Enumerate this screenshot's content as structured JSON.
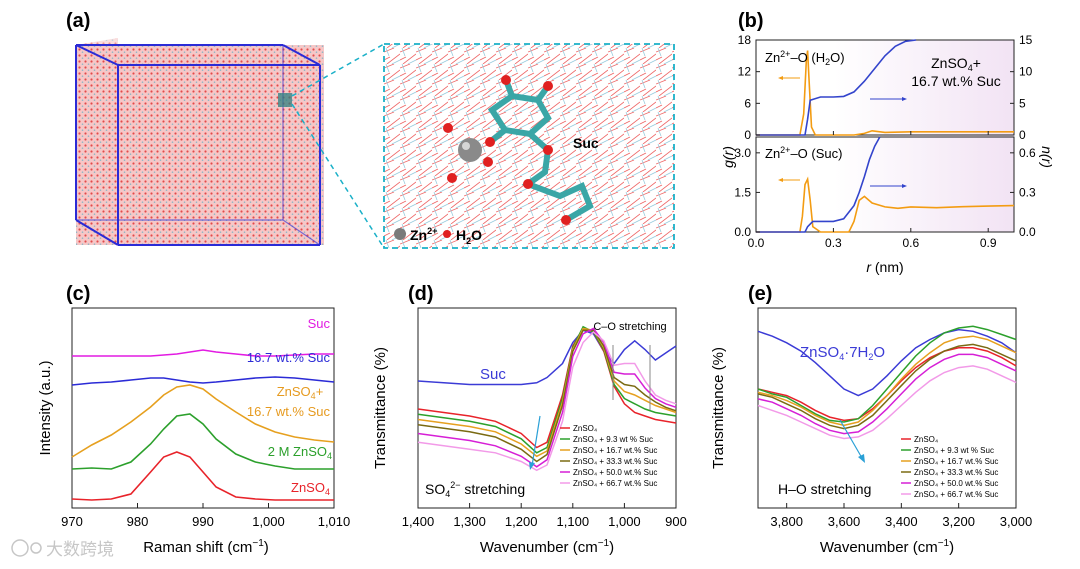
{
  "panels": {
    "a": {
      "label": "(a)",
      "zn_label": "Zn",
      "zn_sup": "2+",
      "water_label": "H",
      "water_sub": "2",
      "water_tail": "O",
      "suc_label": "Suc"
    },
    "b": {
      "label": "(b)",
      "top_label_pre": "Zn",
      "top_label_sup": "2+",
      "top_label_post": "–O (H",
      "top_label_sub": "2",
      "top_label_end": "O)",
      "bottom_label_pre": "Zn",
      "bottom_label_sup": "2+",
      "bottom_label_post": "–O (Suc)",
      "system_line1_pre": "ZnSO",
      "system_line1_sub": "4",
      "system_line1_post": "+",
      "system_line2": "16.7 wt.% Suc",
      "ylabel_left": "g(r)",
      "ylabel_right": "n(r)",
      "xlabel_pre": "r",
      "xlabel_post": " (nm)",
      "x_ticks": [
        "0.0",
        "0.3",
        "0.6",
        "0.9"
      ],
      "top_left_ticks": [
        "0",
        "6",
        "12",
        "18"
      ],
      "top_right_ticks": [
        "0",
        "5",
        "10",
        "15"
      ],
      "bottom_left_ticks": [
        "0.0",
        "1.5",
        "3.0"
      ],
      "bottom_right_ticks": [
        "0.0",
        "0.3",
        "0.6"
      ],
      "colors": {
        "gr": "#f39c12",
        "nr": "#3344cc",
        "shade": "#f4eaf7"
      }
    },
    "c": {
      "label": "(c)",
      "ylabel": "Intensity (a.u.)",
      "xlabel_pre": "Raman shift (cm",
      "xlabel_sup": "−1",
      "xlabel_post": ")",
      "x_ticks": [
        "970",
        "980",
        "990",
        "1,000",
        "1,010"
      ],
      "curve_labels": {
        "suc": "Suc",
        "suc167": "16.7 wt.% Suc",
        "mix_line1_pre": "ZnSO",
        "mix_line1_sub": "4",
        "mix_line1_post": "+",
        "mix_line2": "16.7 wt.% Suc",
        "zn2m_pre": "2 M ZnSO",
        "zn2m_sub": "4",
        "znso4_pre": "ZnSO",
        "znso4_sub": "4"
      }
    },
    "d": {
      "label": "(d)",
      "ylabel": "Transmittance (%)",
      "xlabel_pre": "Wavenumber (cm",
      "xlabel_sup": "−1",
      "xlabel_post": ")",
      "x_ticks": [
        "1,400",
        "1,300",
        "1,200",
        "1,100",
        "1,000",
        "900"
      ],
      "suc_label": "Suc",
      "co_label": "C–O stretching",
      "so4_pre": "SO",
      "so4_sub": "4",
      "so4_sup": "2−",
      "so4_post": " stretching",
      "legend": [
        "ZnSO₄",
        "ZnSO₄ + 9.3 wt % Suc",
        "ZnSO₄ + 16.7 wt.% Suc",
        "ZnSO₄ + 33.3 wt.% Suc",
        "ZnSO₄ + 50.0 wt.% Suc",
        "ZnSO₄ + 66.7 wt.% Suc"
      ]
    },
    "e": {
      "label": "(e)",
      "ylabel": "Transmittance (%)",
      "xlabel_pre": "Wavenumber (cm",
      "xlabel_sup": "−1",
      "xlabel_post": ")",
      "x_ticks": [
        "3,800",
        "3,600",
        "3,400",
        "3,200",
        "3,000"
      ],
      "hydrate_pre": "ZnSO",
      "hydrate_sub": "4",
      "hydrate_post": "·7H",
      "hydrate_sub2": "2",
      "hydrate_end": "O",
      "ho_label": "H–O stretching",
      "legend": [
        "ZnSO₄",
        "ZnSO₄ + 9.3 wt % Suc",
        "ZnSO₄ + 16.7 wt.% Suc",
        "ZnSO₄ + 33.3 wt.% Suc",
        "ZnSO₄ + 50.0 wt.% Suc",
        "ZnSO₄ + 66.7 wt.% Suc"
      ]
    }
  },
  "watermark": "大数跨境",
  "series_colors": [
    "#e8232a",
    "#2ca02c",
    "#e6a01f",
    "#7a6a12",
    "#d61fd6",
    "#f29ae8"
  ],
  "suc_color": "#3b3bd6",
  "chart_data": [
    {
      "panel": "b",
      "type": "line",
      "title": "ZnSO4+ 16.7 wt.% Suc",
      "xlabel": "r (nm)",
      "subplots": [
        {
          "name": "Zn2+–O (H2O)",
          "xlim": [
            0,
            1.0
          ],
          "ylim_left": [
            0,
            18
          ],
          "ylim_right": [
            0,
            15
          ],
          "series": [
            {
              "name": "g(r)",
              "axis": "left",
              "x": [
                0.0,
                0.17,
                0.185,
                0.195,
                0.2,
                0.205,
                0.215,
                0.23,
                0.3,
                0.38,
                0.42,
                0.45,
                0.5,
                0.6,
                0.8,
                1.0
              ],
              "y": [
                0,
                0,
                4,
                14,
                16,
                11,
                1.5,
                0,
                0,
                0,
                0.3,
                0.8,
                0.5,
                0.6,
                0.6,
                0.6
              ]
            },
            {
              "name": "n(r)",
              "axis": "right",
              "x": [
                0.0,
                0.19,
                0.2,
                0.21,
                0.25,
                0.3,
                0.34,
                0.38,
                0.42,
                0.46,
                0.5,
                0.54,
                0.58,
                0.62
              ],
              "y": [
                0,
                0,
                2.5,
                5.5,
                6,
                6,
                6.1,
                6.8,
                8.5,
                10.5,
                12.5,
                14,
                14.8,
                15
              ]
            }
          ]
        },
        {
          "name": "Zn2+–O (Suc)",
          "xlim": [
            0,
            1.0
          ],
          "ylim_left": [
            0,
            3.6
          ],
          "ylim_right": [
            0,
            0.72
          ],
          "series": [
            {
              "name": "g(r)",
              "axis": "left",
              "x": [
                0.0,
                0.17,
                0.18,
                0.19,
                0.2,
                0.21,
                0.22,
                0.25,
                0.3,
                0.36,
                0.38,
                0.4,
                0.42,
                0.45,
                0.5,
                0.55,
                0.6,
                0.7,
                0.8,
                0.9,
                1.0
              ],
              "y": [
                0,
                0,
                0.6,
                1.8,
                2.0,
                1.2,
                0.2,
                0,
                0,
                0,
                0.4,
                1.2,
                1.35,
                1.1,
                0.95,
                0.9,
                0.95,
                0.92,
                0.96,
                0.98,
                1.0
              ]
            },
            {
              "name": "n(r)",
              "axis": "right",
              "x": [
                0.0,
                0.19,
                0.2,
                0.22,
                0.25,
                0.3,
                0.34,
                0.38,
                0.4,
                0.42,
                0.44,
                0.46,
                0.48
              ],
              "y": [
                0,
                0,
                0.04,
                0.08,
                0.08,
                0.08,
                0.1,
                0.2,
                0.3,
                0.42,
                0.55,
                0.65,
                0.72
              ]
            }
          ]
        }
      ]
    },
    {
      "panel": "c",
      "type": "line",
      "xlabel": "Raman shift (cm−1)",
      "ylabel": "Intensity (a.u.)",
      "xlim": [
        970,
        1010
      ],
      "x": [
        970,
        973,
        976,
        979,
        982,
        984,
        986,
        988,
        990,
        992,
        995,
        998,
        1001,
        1004,
        1007,
        1010
      ],
      "series": [
        {
          "name": "ZnSO4",
          "values": [
            0.03,
            0.02,
            0.03,
            0.08,
            0.3,
            0.45,
            0.5,
            0.45,
            0.3,
            0.15,
            0.05,
            0.03,
            0.02,
            0.02,
            0.02,
            0.02
          ],
          "offset": 0
        },
        {
          "name": "2 M ZnSO4",
          "values": [
            0.05,
            0.06,
            0.05,
            0.12,
            0.3,
            0.45,
            0.58,
            0.6,
            0.5,
            0.35,
            0.2,
            0.12,
            0.08,
            0.05,
            0.05,
            0.05
          ],
          "offset": 0.28
        },
        {
          "name": "ZnSO4+ 16.7 wt.% Suc",
          "values": [
            0.0,
            0.12,
            0.22,
            0.35,
            0.5,
            0.62,
            0.7,
            0.72,
            0.68,
            0.58,
            0.45,
            0.33,
            0.25,
            0.2,
            0.17,
            0.15
          ],
          "offset": 0.45
        },
        {
          "name": "16.7 wt.% Suc",
          "values": [
            0.05,
            0.07,
            0.08,
            0.1,
            0.12,
            0.12,
            0.1,
            0.08,
            0.07,
            0.08,
            0.1,
            0.12,
            0.13,
            0.12,
            0.1,
            0.08
          ],
          "offset": 1.12
        },
        {
          "name": "Suc",
          "values": [
            0.08,
            0.08,
            0.08,
            0.08,
            0.08,
            0.09,
            0.1,
            0.12,
            0.14,
            0.12,
            0.1,
            0.08,
            0.08,
            0.09,
            0.1,
            0.1
          ],
          "offset": 1.38
        }
      ]
    },
    {
      "panel": "d",
      "type": "line",
      "xlabel": "Wavenumber (cm−1)",
      "ylabel": "Transmittance (%)",
      "xlim": [
        1400,
        900
      ],
      "x": [
        1400,
        1350,
        1300,
        1250,
        1200,
        1170,
        1150,
        1120,
        1100,
        1080,
        1060,
        1040,
        1020,
        1000,
        980,
        960,
        940,
        920,
        900
      ],
      "series": [
        {
          "name": "Suc",
          "values": [
            0.68,
            0.67,
            0.66,
            0.66,
            0.66,
            0.67,
            0.7,
            0.78,
            0.9,
            0.97,
            0.95,
            0.85,
            0.78,
            0.86,
            0.91,
            0.86,
            0.8,
            0.84,
            0.88
          ]
        },
        {
          "name": "ZnSO4",
          "values": [
            0.52,
            0.5,
            0.48,
            0.45,
            0.38,
            0.3,
            0.33,
            0.6,
            0.88,
            0.98,
            0.96,
            0.85,
            0.65,
            0.55,
            0.5,
            0.48,
            0.46,
            0.45,
            0.44
          ]
        },
        {
          "name": "ZnSO4 + 9.3 wt % Suc",
          "values": [
            0.49,
            0.47,
            0.45,
            0.42,
            0.35,
            0.27,
            0.3,
            0.58,
            0.87,
            0.99,
            0.96,
            0.86,
            0.66,
            0.58,
            0.55,
            0.52,
            0.5,
            0.49,
            0.48
          ]
        },
        {
          "name": "ZnSO4 + 16.7 wt.% Suc",
          "values": [
            0.46,
            0.44,
            0.42,
            0.39,
            0.32,
            0.25,
            0.28,
            0.56,
            0.86,
            0.98,
            0.97,
            0.87,
            0.68,
            0.62,
            0.6,
            0.57,
            0.54,
            0.52,
            0.5
          ]
        },
        {
          "name": "ZnSO4 + 33.3 wt.% Suc",
          "values": [
            0.43,
            0.41,
            0.39,
            0.36,
            0.29,
            0.22,
            0.26,
            0.54,
            0.85,
            0.97,
            0.97,
            0.88,
            0.7,
            0.66,
            0.65,
            0.6,
            0.56,
            0.53,
            0.51
          ]
        },
        {
          "name": "ZnSO4 + 50.0 wt.% Suc",
          "values": [
            0.38,
            0.36,
            0.34,
            0.31,
            0.25,
            0.19,
            0.23,
            0.5,
            0.82,
            0.95,
            0.98,
            0.9,
            0.73,
            0.72,
            0.72,
            0.64,
            0.58,
            0.55,
            0.53
          ]
        },
        {
          "name": "ZnSO4 + 66.7 wt.% Suc",
          "values": [
            0.33,
            0.31,
            0.29,
            0.27,
            0.22,
            0.17,
            0.2,
            0.45,
            0.76,
            0.9,
            0.96,
            0.91,
            0.77,
            0.78,
            0.78,
            0.68,
            0.6,
            0.57,
            0.55
          ]
        }
      ]
    },
    {
      "panel": "e",
      "type": "line",
      "xlabel": "Wavenumber (cm−1)",
      "ylabel": "Transmittance (%)",
      "xlim": [
        3900,
        3000
      ],
      "x": [
        3900,
        3850,
        3800,
        3750,
        3700,
        3650,
        3600,
        3550,
        3500,
        3450,
        3400,
        3350,
        3300,
        3250,
        3200,
        3150,
        3100,
        3050,
        3000
      ],
      "series": [
        {
          "name": "ZnSO4·7H2O",
          "values": [
            0.95,
            0.92,
            0.88,
            0.83,
            0.76,
            0.68,
            0.6,
            0.56,
            0.6,
            0.68,
            0.77,
            0.85,
            0.9,
            0.94,
            0.96,
            0.95,
            0.92,
            0.88,
            0.82
          ]
        },
        {
          "name": "ZnSO4",
          "values": [
            0.6,
            0.58,
            0.56,
            0.52,
            0.47,
            0.43,
            0.41,
            0.42,
            0.48,
            0.56,
            0.65,
            0.73,
            0.79,
            0.83,
            0.85,
            0.85,
            0.83,
            0.79,
            0.74
          ]
        },
        {
          "name": "ZnSO4 + 9.3 wt % Suc",
          "values": [
            0.6,
            0.57,
            0.55,
            0.5,
            0.45,
            0.41,
            0.4,
            0.42,
            0.5,
            0.6,
            0.7,
            0.8,
            0.88,
            0.94,
            0.97,
            0.98,
            0.96,
            0.93,
            0.9
          ]
        },
        {
          "name": "ZnSO4 + 16.7 wt.% Suc",
          "values": [
            0.58,
            0.56,
            0.53,
            0.49,
            0.44,
            0.4,
            0.38,
            0.4,
            0.47,
            0.56,
            0.66,
            0.75,
            0.82,
            0.88,
            0.91,
            0.92,
            0.9,
            0.86,
            0.82
          ]
        },
        {
          "name": "ZnSO4 + 33.3 wt.% Suc",
          "values": [
            0.57,
            0.55,
            0.51,
            0.47,
            0.42,
            0.38,
            0.36,
            0.38,
            0.44,
            0.53,
            0.62,
            0.71,
            0.78,
            0.83,
            0.86,
            0.87,
            0.85,
            0.81,
            0.77
          ]
        },
        {
          "name": "ZnSO4 + 50.0 wt.% Suc",
          "values": [
            0.54,
            0.52,
            0.48,
            0.44,
            0.39,
            0.35,
            0.33,
            0.34,
            0.4,
            0.48,
            0.57,
            0.66,
            0.73,
            0.78,
            0.81,
            0.81,
            0.79,
            0.75,
            0.71
          ]
        },
        {
          "name": "ZnSO4 + 66.7 wt.% Suc",
          "values": [
            0.5,
            0.47,
            0.44,
            0.4,
            0.36,
            0.32,
            0.3,
            0.31,
            0.35,
            0.42,
            0.5,
            0.58,
            0.65,
            0.7,
            0.73,
            0.74,
            0.72,
            0.68,
            0.64
          ]
        }
      ]
    }
  ]
}
